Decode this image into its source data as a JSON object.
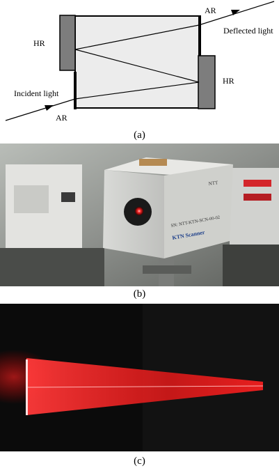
{
  "diagram": {
    "labels": {
      "hr_left": "HR",
      "hr_right": "HR",
      "ar_top": "AR",
      "ar_bottom": "AR",
      "deflected_light": "Deflected light",
      "incident_light": "Incident light"
    },
    "colors": {
      "crystal_fill": "#ececec",
      "mirror_fill": "#7d7d7d",
      "line": "#000000"
    }
  },
  "photo_b": {
    "device_text_1": "SN: NTT-KTN-SCN-00-02",
    "device_text_2": "KTN Scanner",
    "brand_text": "NTT",
    "colors": {
      "laser_dot": "#ff2a2a",
      "device_body": "#d7d8d6"
    }
  },
  "photo_c": {
    "colors": {
      "beam": "#ff1a1a",
      "background": "#0b0b0b"
    }
  },
  "captions": {
    "a": "(a)",
    "b": "(b)",
    "c": "(c)"
  }
}
